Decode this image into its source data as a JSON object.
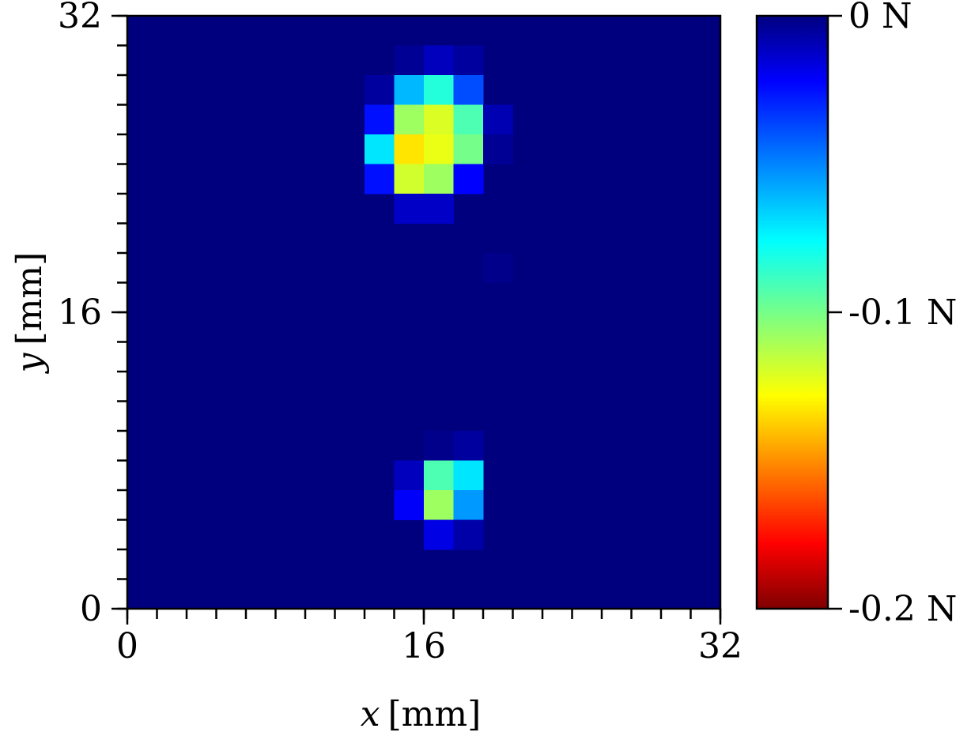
{
  "chart_data": {
    "type": "heatmap",
    "xlabel": {
      "var": "x",
      "unit": "[mm]"
    },
    "ylabel": {
      "var": "y",
      "unit": "[mm]"
    },
    "xlim": [
      0,
      32
    ],
    "ylim": [
      0,
      32
    ],
    "x_ticks": [
      "0",
      "16",
      "32"
    ],
    "y_ticks": [
      "0",
      "16",
      "32"
    ],
    "minor_tick_step_mm": 1.6,
    "grid": false,
    "colormap": "jet",
    "colorbar": {
      "range": [
        -0.2,
        0
      ],
      "ticks": [
        "0 N",
        "-0.1 N",
        "-0.2 N"
      ],
      "tick_values": [
        0,
        -0.1,
        -0.2
      ],
      "placement": "right"
    },
    "grid_size": 20,
    "cell_size_mm": 1.6,
    "background_value": 0,
    "cells": [
      {
        "row": 1,
        "col": 9,
        "value": -0.004
      },
      {
        "row": 1,
        "col": 10,
        "value": -0.012
      },
      {
        "row": 1,
        "col": 11,
        "value": -0.006
      },
      {
        "row": 2,
        "col": 8,
        "value": -0.006
      },
      {
        "row": 2,
        "col": 9,
        "value": -0.061
      },
      {
        "row": 2,
        "col": 10,
        "value": -0.082
      },
      {
        "row": 2,
        "col": 11,
        "value": -0.04
      },
      {
        "row": 3,
        "col": 8,
        "value": -0.028
      },
      {
        "row": 3,
        "col": 9,
        "value": -0.106
      },
      {
        "row": 3,
        "col": 10,
        "value": -0.118
      },
      {
        "row": 3,
        "col": 11,
        "value": -0.09
      },
      {
        "row": 3,
        "col": 12,
        "value": -0.01
      },
      {
        "row": 4,
        "col": 8,
        "value": -0.07
      },
      {
        "row": 4,
        "col": 9,
        "value": -0.13
      },
      {
        "row": 4,
        "col": 10,
        "value": -0.121
      },
      {
        "row": 4,
        "col": 11,
        "value": -0.098
      },
      {
        "row": 4,
        "col": 12,
        "value": -0.004
      },
      {
        "row": 5,
        "col": 8,
        "value": -0.028
      },
      {
        "row": 5,
        "col": 9,
        "value": -0.116
      },
      {
        "row": 5,
        "col": 10,
        "value": -0.106
      },
      {
        "row": 5,
        "col": 11,
        "value": -0.025
      },
      {
        "row": 6,
        "col": 9,
        "value": -0.014
      },
      {
        "row": 6,
        "col": 10,
        "value": -0.014
      },
      {
        "row": 8,
        "col": 12,
        "value": -0.002
      },
      {
        "row": 14,
        "col": 10,
        "value": -0.002
      },
      {
        "row": 14,
        "col": 11,
        "value": -0.006
      },
      {
        "row": 15,
        "col": 9,
        "value": -0.012
      },
      {
        "row": 15,
        "col": 10,
        "value": -0.09
      },
      {
        "row": 15,
        "col": 11,
        "value": -0.07
      },
      {
        "row": 16,
        "col": 9,
        "value": -0.024
      },
      {
        "row": 16,
        "col": 10,
        "value": -0.106
      },
      {
        "row": 16,
        "col": 11,
        "value": -0.055
      },
      {
        "row": 17,
        "col": 10,
        "value": -0.02
      },
      {
        "row": 17,
        "col": 11,
        "value": -0.008
      }
    ]
  }
}
